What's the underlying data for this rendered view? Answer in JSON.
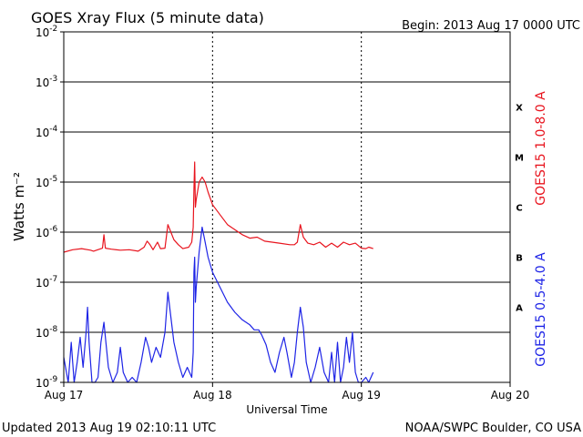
{
  "header": {
    "title": "GOES Xray Flux (5 minute data)",
    "begin": "Begin:  2013 Aug 17 0000 UTC"
  },
  "footer": {
    "updated": "Updated 2013 Aug 19 02:10:11 UTC",
    "source": "NOAA/SWPC Boulder, CO USA"
  },
  "chart_data": {
    "type": "line",
    "title": "GOES Xray Flux (5 minute data)",
    "xlabel": "Universal Time",
    "ylabel": "Watts m⁻²",
    "y_scale": "log",
    "ylim": [
      1e-09,
      0.01
    ],
    "xlim_days": [
      0,
      3
    ],
    "x_ticks": [
      {
        "day": 0,
        "label": "Aug 17"
      },
      {
        "day": 1,
        "label": "Aug 18"
      },
      {
        "day": 2,
        "label": "Aug 19"
      },
      {
        "day": 3,
        "label": "Aug 20"
      }
    ],
    "y_ticks": [
      {
        "exp": -9,
        "label": "10",
        "sup": "-9"
      },
      {
        "exp": -8,
        "label": "10",
        "sup": "-8"
      },
      {
        "exp": -7,
        "label": "10",
        "sup": "-7"
      },
      {
        "exp": -6,
        "label": "10",
        "sup": "-6"
      },
      {
        "exp": -5,
        "label": "10",
        "sup": "-5"
      },
      {
        "exp": -4,
        "label": "10",
        "sup": "-4"
      },
      {
        "exp": -3,
        "label": "10",
        "sup": "-3"
      },
      {
        "exp": -2,
        "label": "10",
        "sup": "-2"
      }
    ],
    "flare_classes": [
      {
        "label": "A",
        "exp": -7.5
      },
      {
        "label": "B",
        "exp": -6.5
      },
      {
        "label": "C",
        "exp": -5.5
      },
      {
        "label": "M",
        "exp": -4.5
      },
      {
        "label": "X",
        "exp": -3.5
      }
    ],
    "grid": "horizontal",
    "legend": "right",
    "series": [
      {
        "name": "GOES15 1.0-8.0 A",
        "color": "#e8141e",
        "points": [
          [
            0.0,
            -6.4
          ],
          [
            0.06,
            -6.35
          ],
          [
            0.12,
            -6.33
          ],
          [
            0.18,
            -6.36
          ],
          [
            0.2,
            -6.38
          ],
          [
            0.22,
            -6.36
          ],
          [
            0.26,
            -6.32
          ],
          [
            0.27,
            -6.05
          ],
          [
            0.28,
            -6.32
          ],
          [
            0.32,
            -6.34
          ],
          [
            0.38,
            -6.36
          ],
          [
            0.44,
            -6.35
          ],
          [
            0.5,
            -6.38
          ],
          [
            0.54,
            -6.3
          ],
          [
            0.56,
            -6.18
          ],
          [
            0.58,
            -6.25
          ],
          [
            0.6,
            -6.35
          ],
          [
            0.63,
            -6.2
          ],
          [
            0.65,
            -6.33
          ],
          [
            0.68,
            -6.32
          ],
          [
            0.7,
            -5.85
          ],
          [
            0.72,
            -6.0
          ],
          [
            0.74,
            -6.15
          ],
          [
            0.77,
            -6.25
          ],
          [
            0.8,
            -6.33
          ],
          [
            0.84,
            -6.3
          ],
          [
            0.86,
            -6.2
          ],
          [
            0.87,
            -5.9
          ],
          [
            0.875,
            -5.15
          ],
          [
            0.88,
            -4.6
          ],
          [
            0.885,
            -5.5
          ],
          [
            0.89,
            -5.35
          ],
          [
            0.91,
            -5.0
          ],
          [
            0.93,
            -4.9
          ],
          [
            0.95,
            -5.0
          ],
          [
            0.97,
            -5.2
          ],
          [
            1.0,
            -5.45
          ],
          [
            1.05,
            -5.65
          ],
          [
            1.1,
            -5.85
          ],
          [
            1.15,
            -5.95
          ],
          [
            1.2,
            -6.05
          ],
          [
            1.25,
            -6.12
          ],
          [
            1.3,
            -6.1
          ],
          [
            1.35,
            -6.18
          ],
          [
            1.4,
            -6.2
          ],
          [
            1.45,
            -6.22
          ],
          [
            1.52,
            -6.25
          ],
          [
            1.55,
            -6.25
          ],
          [
            1.57,
            -6.2
          ],
          [
            1.59,
            -5.85
          ],
          [
            1.61,
            -6.1
          ],
          [
            1.64,
            -6.22
          ],
          [
            1.68,
            -6.25
          ],
          [
            1.72,
            -6.2
          ],
          [
            1.76,
            -6.3
          ],
          [
            1.8,
            -6.22
          ],
          [
            1.84,
            -6.3
          ],
          [
            1.88,
            -6.2
          ],
          [
            1.92,
            -6.25
          ],
          [
            1.96,
            -6.22
          ],
          [
            2.0,
            -6.32
          ],
          [
            2.03,
            -6.33
          ],
          [
            2.05,
            -6.3
          ],
          [
            2.08,
            -6.33
          ]
        ]
      },
      {
        "name": "GOES15 0.5-4.0 A",
        "color": "#1e24e6",
        "points": [
          [
            0.0,
            -8.5
          ],
          [
            0.03,
            -9.0
          ],
          [
            0.05,
            -8.2
          ],
          [
            0.07,
            -9.0
          ],
          [
            0.09,
            -8.6
          ],
          [
            0.11,
            -8.1
          ],
          [
            0.13,
            -8.7
          ],
          [
            0.15,
            -8.0
          ],
          [
            0.16,
            -7.5
          ],
          [
            0.17,
            -8.2
          ],
          [
            0.19,
            -9.0
          ],
          [
            0.21,
            -9.0
          ],
          [
            0.23,
            -8.9
          ],
          [
            0.25,
            -8.2
          ],
          [
            0.27,
            -7.8
          ],
          [
            0.28,
            -8.1
          ],
          [
            0.3,
            -8.7
          ],
          [
            0.33,
            -9.0
          ],
          [
            0.36,
            -8.8
          ],
          [
            0.38,
            -8.3
          ],
          [
            0.4,
            -8.8
          ],
          [
            0.43,
            -9.0
          ],
          [
            0.46,
            -8.9
          ],
          [
            0.49,
            -9.0
          ],
          [
            0.52,
            -8.6
          ],
          [
            0.55,
            -8.1
          ],
          [
            0.57,
            -8.3
          ],
          [
            0.59,
            -8.6
          ],
          [
            0.62,
            -8.3
          ],
          [
            0.65,
            -8.5
          ],
          [
            0.68,
            -8.0
          ],
          [
            0.7,
            -7.2
          ],
          [
            0.72,
            -7.7
          ],
          [
            0.74,
            -8.2
          ],
          [
            0.77,
            -8.6
          ],
          [
            0.8,
            -8.9
          ],
          [
            0.83,
            -8.7
          ],
          [
            0.86,
            -8.9
          ],
          [
            0.87,
            -8.4
          ],
          [
            0.875,
            -6.8
          ],
          [
            0.88,
            -6.5
          ],
          [
            0.885,
            -7.4
          ],
          [
            0.89,
            -7.1
          ],
          [
            0.91,
            -6.4
          ],
          [
            0.93,
            -5.9
          ],
          [
            0.95,
            -6.2
          ],
          [
            0.97,
            -6.5
          ],
          [
            1.0,
            -6.8
          ],
          [
            1.05,
            -7.1
          ],
          [
            1.1,
            -7.4
          ],
          [
            1.15,
            -7.6
          ],
          [
            1.2,
            -7.75
          ],
          [
            1.25,
            -7.85
          ],
          [
            1.28,
            -7.95
          ],
          [
            1.31,
            -7.95
          ],
          [
            1.33,
            -8.05
          ],
          [
            1.36,
            -8.25
          ],
          [
            1.39,
            -8.6
          ],
          [
            1.42,
            -8.8
          ],
          [
            1.45,
            -8.4
          ],
          [
            1.48,
            -8.1
          ],
          [
            1.5,
            -8.4
          ],
          [
            1.53,
            -8.9
          ],
          [
            1.55,
            -8.6
          ],
          [
            1.57,
            -8.0
          ],
          [
            1.59,
            -7.5
          ],
          [
            1.61,
            -7.9
          ],
          [
            1.63,
            -8.6
          ],
          [
            1.66,
            -9.0
          ],
          [
            1.69,
            -8.7
          ],
          [
            1.72,
            -8.3
          ],
          [
            1.75,
            -8.8
          ],
          [
            1.78,
            -9.0
          ],
          [
            1.8,
            -8.4
          ],
          [
            1.82,
            -9.0
          ],
          [
            1.84,
            -8.2
          ],
          [
            1.86,
            -9.0
          ],
          [
            1.88,
            -8.7
          ],
          [
            1.9,
            -8.1
          ],
          [
            1.92,
            -8.6
          ],
          [
            1.94,
            -8.0
          ],
          [
            1.96,
            -8.8
          ],
          [
            1.98,
            -9.0
          ],
          [
            2.0,
            -9.0
          ],
          [
            2.03,
            -8.9
          ],
          [
            2.05,
            -9.0
          ],
          [
            2.08,
            -8.8
          ]
        ]
      }
    ]
  }
}
